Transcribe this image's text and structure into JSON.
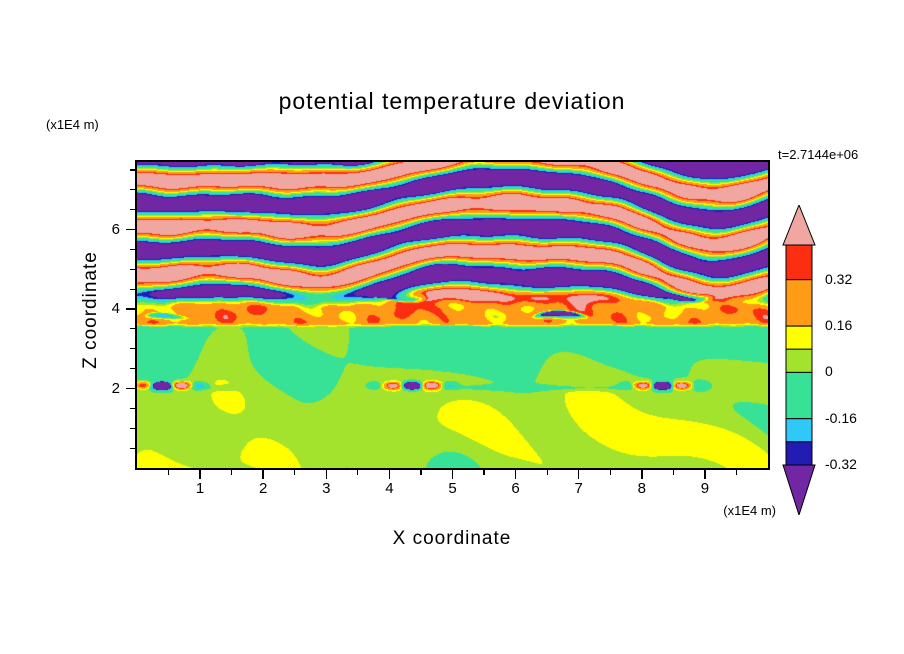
{
  "title": "potential temperature deviation",
  "time_label": "t=2.7144e+06",
  "axes": {
    "x_label": "X coordinate",
    "x_unit": "(x1E4 m)",
    "z_label": "Z coordinate",
    "z_unit": "(x1E4 m)"
  },
  "chart_data": {
    "type": "heatmap",
    "title": "potential temperature deviation",
    "xlabel": "X coordinate",
    "ylabel": "Z coordinate",
    "x_unit": "(x1E4 m)",
    "z_unit": "(x1E4 m)",
    "time_annotation": "t=2.7144e+06",
    "x_range": [
      0,
      10
    ],
    "z_range": [
      0,
      7.7
    ],
    "x_ticks": [
      1,
      2,
      3,
      4,
      5,
      6,
      7,
      8,
      9
    ],
    "z_ticks": [
      2,
      4,
      6
    ],
    "x_minor_step": 0.5,
    "z_minor_step": 0.5,
    "grid": false,
    "legend_position": "right-colorbar",
    "colorbar": {
      "orientation": "vertical",
      "arrow_ends": true,
      "labels": [
        "0.32",
        "0.16",
        "0",
        "-0.16",
        "-0.32"
      ],
      "levels_ascending": [
        -0.32,
        -0.24,
        -0.16,
        0,
        0.08,
        0.16,
        0.32,
        0.4
      ],
      "palette_ascending": [
        "#7126A3",
        "#221CB4",
        "#2FC8F7",
        "#37E296",
        "#A3E32E",
        "#FFFF00",
        "#FF9B16",
        "#FB2E12",
        "#F1A7A1"
      ],
      "segments_top_to_bottom": [
        {
          "color": "#F1A7A1",
          "units": 0,
          "arrow": "up"
        },
        {
          "color": "#FB2E12",
          "units": 1.5,
          "label_after": "0.32"
        },
        {
          "color": "#FF9B16",
          "units": 2,
          "label_after": "0.16"
        },
        {
          "color": "#FFFF00",
          "units": 1
        },
        {
          "color": "#A3E32E",
          "units": 1,
          "label_after": "0"
        },
        {
          "color": "#37E296",
          "units": 2,
          "label_after": "-0.16"
        },
        {
          "color": "#2FC8F7",
          "units": 1
        },
        {
          "color": "#221CB4",
          "units": 1,
          "label_after": "-0.32"
        },
        {
          "color": "#7126A3",
          "units": 0,
          "arrow": "down"
        }
      ]
    },
    "field_summary": {
      "upper_layer": "alternating salmon-pink (>0.4) and purple (<-0.32) stratified wave-breaking bands for z above ~4.5, with thin multicolor filaments at band interfaces",
      "middle_layer": "orange/red mixing band (~0.16 to 0.4) with purple intrusions and yellow flecks for z ~3.6 to 4.5",
      "lower_layer": "weak-deviation green turbulence (chartreuse positive / spring-green negative eddies) below z ~3.6, with a speckled shear line (red/navy/cyan bursts) near z = 2"
    }
  }
}
